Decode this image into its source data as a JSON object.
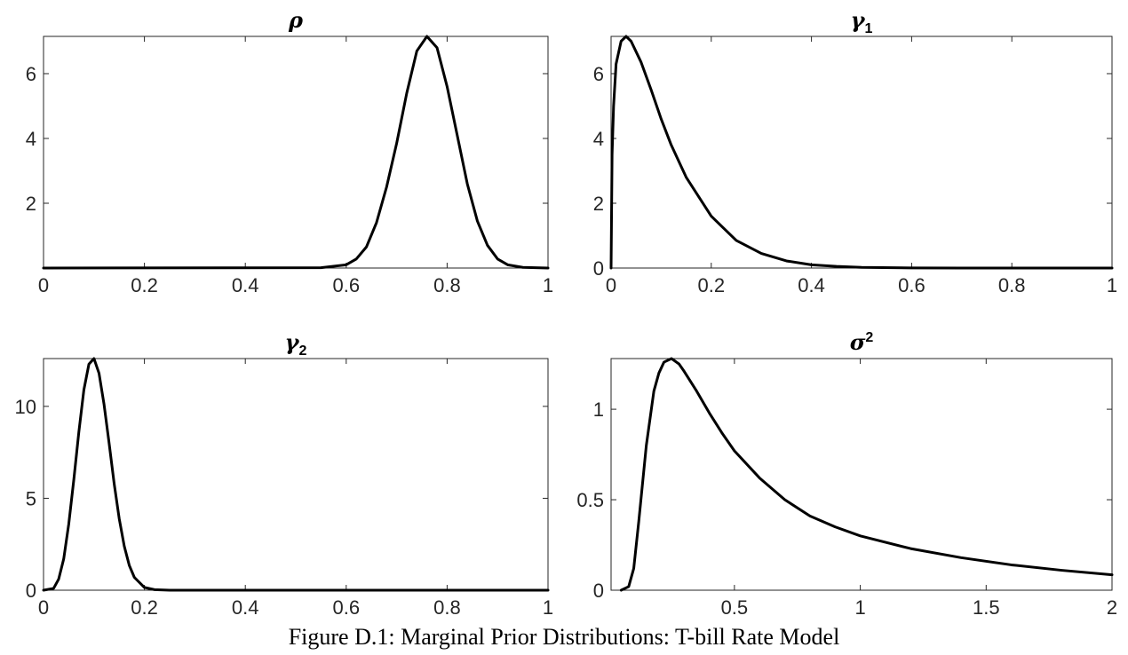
{
  "caption": "Figure D.1: Marginal Prior Distributions: T-bill Rate Model",
  "chart_data": [
    {
      "type": "line",
      "title": "ρ",
      "title_sup": "",
      "xlim": [
        0,
        1
      ],
      "ylim": [
        0,
        7.15
      ],
      "xticks": [
        0,
        0.2,
        0.4,
        0.6,
        0.8,
        1
      ],
      "xtick_labels": [
        "0",
        "0.2",
        "0.4",
        "0.6",
        "0.8",
        "1"
      ],
      "yticks": [
        2,
        4,
        6
      ],
      "ytick_labels": [
        "2",
        "4",
        "6"
      ],
      "grid": false,
      "series": [
        {
          "x": [
            0,
            0.55,
            0.6,
            0.62,
            0.64,
            0.66,
            0.68,
            0.7,
            0.72,
            0.74,
            0.76,
            0.78,
            0.8,
            0.82,
            0.84,
            0.86,
            0.88,
            0.9,
            0.92,
            0.95,
            1
          ],
          "y": [
            0,
            0.01,
            0.1,
            0.28,
            0.65,
            1.4,
            2.5,
            3.85,
            5.4,
            6.7,
            7.15,
            6.8,
            5.6,
            4.1,
            2.6,
            1.45,
            0.7,
            0.28,
            0.1,
            0.02,
            0
          ]
        }
      ]
    },
    {
      "type": "line",
      "title": "γ",
      "title_sup": "1",
      "xlim": [
        0,
        1
      ],
      "ylim": [
        0,
        7.15
      ],
      "xticks": [
        0,
        0.2,
        0.4,
        0.6,
        0.8,
        1
      ],
      "xtick_labels": [
        "0",
        "0.2",
        "0.4",
        "0.6",
        "0.8",
        "1"
      ],
      "yticks": [
        0,
        2,
        4,
        6
      ],
      "ytick_labels": [
        "0",
        "2",
        "4",
        "6"
      ],
      "grid": false,
      "series": [
        {
          "x": [
            0,
            0.002,
            0.005,
            0.01,
            0.02,
            0.03,
            0.04,
            0.06,
            0.08,
            0.1,
            0.12,
            0.15,
            0.2,
            0.25,
            0.3,
            0.35,
            0.4,
            0.45,
            0.5,
            0.6,
            0.7,
            1
          ],
          "y": [
            0,
            3.5,
            5.0,
            6.3,
            7.0,
            7.15,
            7.0,
            6.35,
            5.5,
            4.6,
            3.8,
            2.8,
            1.6,
            0.85,
            0.45,
            0.22,
            0.1,
            0.05,
            0.02,
            0.005,
            0,
            0
          ]
        }
      ]
    },
    {
      "type": "line",
      "title": "γ",
      "title_sup": "2",
      "xlim": [
        0,
        1
      ],
      "ylim": [
        0,
        12.6
      ],
      "xticks": [
        0,
        0.2,
        0.4,
        0.6,
        0.8,
        1
      ],
      "xtick_labels": [
        "0",
        "0.2",
        "0.4",
        "0.6",
        "0.8",
        "1"
      ],
      "yticks": [
        0,
        5,
        10
      ],
      "ytick_labels": [
        "0",
        "5",
        "10"
      ],
      "grid": false,
      "series": [
        {
          "x": [
            0,
            0.02,
            0.03,
            0.04,
            0.05,
            0.06,
            0.07,
            0.08,
            0.09,
            0.1,
            0.11,
            0.12,
            0.13,
            0.14,
            0.15,
            0.16,
            0.17,
            0.18,
            0.2,
            0.22,
            0.25,
            1
          ],
          "y": [
            0,
            0.1,
            0.6,
            1.7,
            3.6,
            6.0,
            8.6,
            10.9,
            12.3,
            12.6,
            11.8,
            10.1,
            8.0,
            5.8,
            3.9,
            2.4,
            1.35,
            0.7,
            0.15,
            0.03,
            0,
            0
          ]
        }
      ]
    },
    {
      "type": "line",
      "title": "σ",
      "title_sup": "2",
      "xlim": [
        0.01,
        2
      ],
      "ylim": [
        0,
        1.28
      ],
      "xticks": [
        0.5,
        1,
        1.5,
        2
      ],
      "xtick_labels": [
        "0.5",
        "1",
        "1.5",
        "2"
      ],
      "yticks": [
        0,
        0.5,
        1
      ],
      "ytick_labels": [
        "0",
        "0.5",
        "1"
      ],
      "grid": false,
      "series": [
        {
          "x": [
            0.05,
            0.08,
            0.1,
            0.12,
            0.15,
            0.18,
            0.2,
            0.22,
            0.25,
            0.28,
            0.3,
            0.35,
            0.4,
            0.45,
            0.5,
            0.6,
            0.7,
            0.8,
            0.9,
            1.0,
            1.2,
            1.4,
            1.6,
            1.8,
            2.0
          ],
          "y": [
            0,
            0.02,
            0.12,
            0.38,
            0.8,
            1.1,
            1.2,
            1.26,
            1.28,
            1.25,
            1.21,
            1.1,
            0.98,
            0.87,
            0.77,
            0.62,
            0.5,
            0.41,
            0.35,
            0.3,
            0.23,
            0.18,
            0.14,
            0.11,
            0.085
          ]
        }
      ]
    }
  ]
}
